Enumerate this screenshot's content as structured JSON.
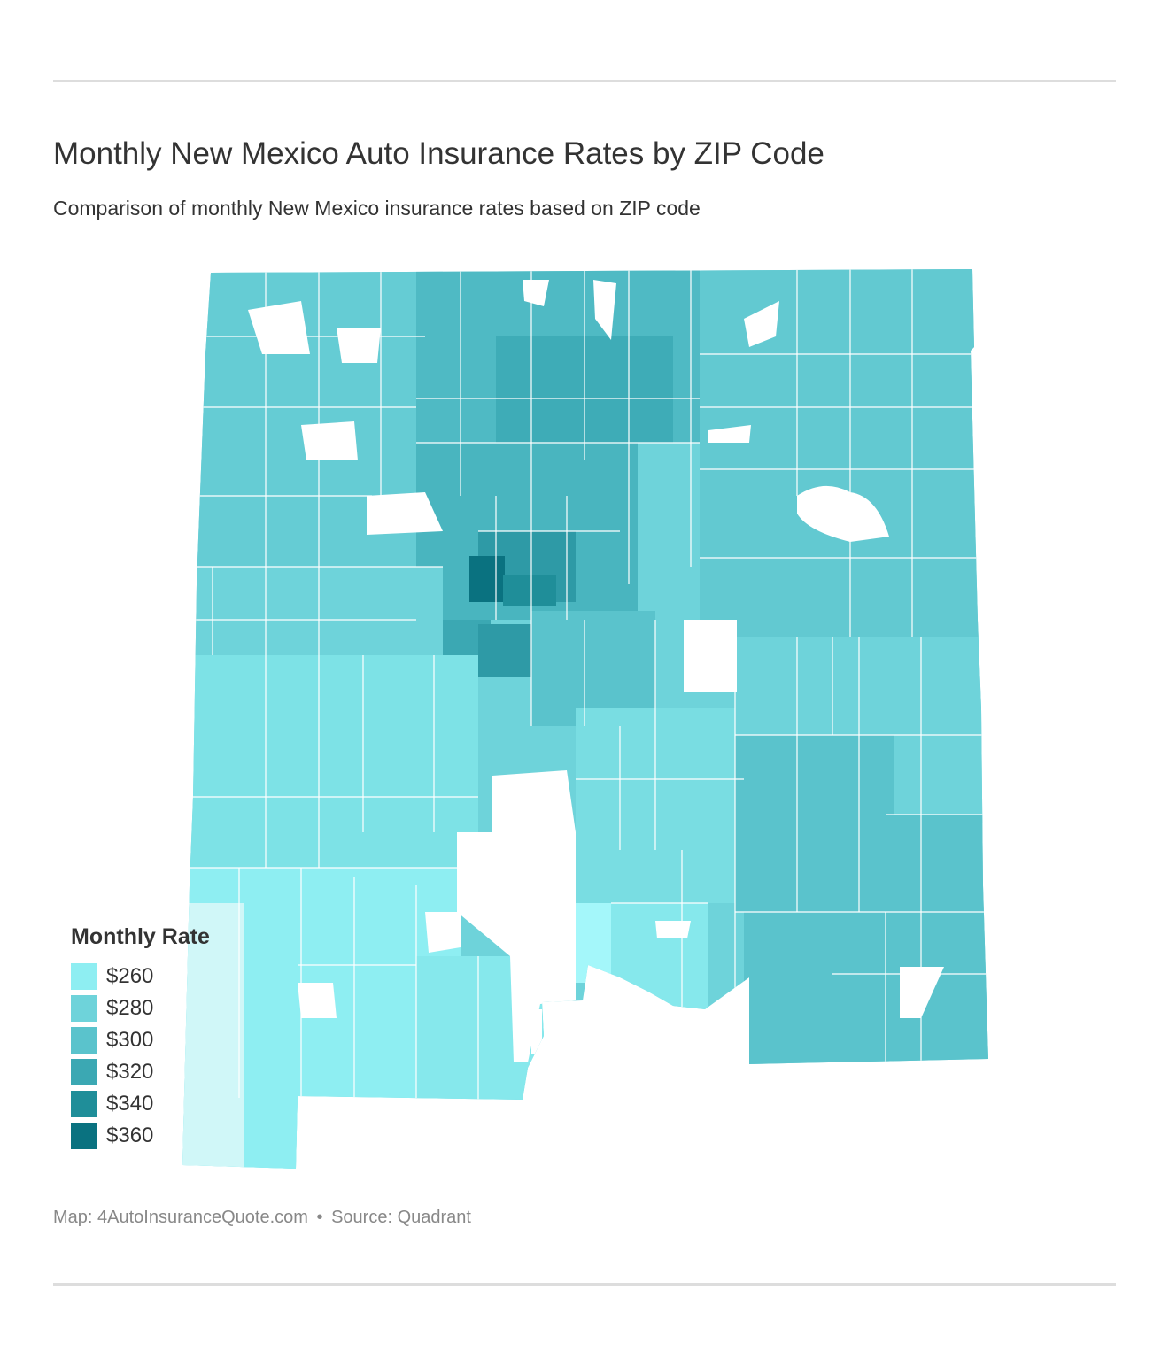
{
  "header": {
    "title": "Monthly New Mexico Auto Insurance Rates by ZIP Code",
    "subtitle": "Comparison of monthly New Mexico insurance rates based on ZIP code"
  },
  "legend": {
    "title": "Monthly Rate",
    "items": [
      {
        "label": "$260",
        "color": "#8eeef2"
      },
      {
        "label": "$280",
        "color": "#6ed3da"
      },
      {
        "label": "$300",
        "color": "#5ac3cc"
      },
      {
        "label": "$320",
        "color": "#3ba8b3"
      },
      {
        "label": "$340",
        "color": "#1f8e99"
      },
      {
        "label": "$360",
        "color": "#0a7280"
      }
    ]
  },
  "footer": {
    "map_credit": "Map: 4AutoInsuranceQuote.com",
    "separator": "•",
    "source": "Source: Quadrant"
  },
  "map_colors": {
    "lightest": "#d0f7f8",
    "light_cyan": "#a4f7fa",
    "no_data": "#ffffff",
    "zip_border": "#ffffff"
  }
}
